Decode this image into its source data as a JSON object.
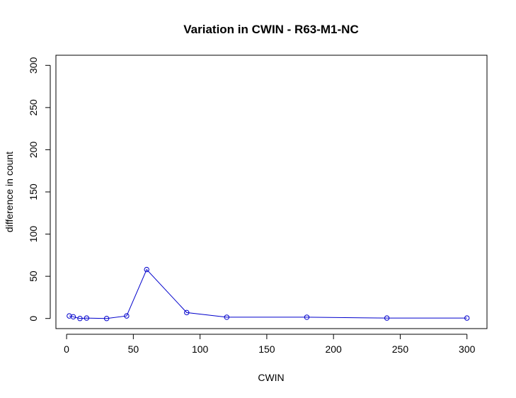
{
  "chart_data": {
    "type": "line",
    "title": "Variation in CWIN - R63-M1-NC",
    "xlabel": "CWIN",
    "ylabel": "difference in count",
    "xlim": [
      -8,
      315
    ],
    "ylim": [
      -12,
      312
    ],
    "xticks": [
      0,
      50,
      100,
      150,
      200,
      250,
      300
    ],
    "yticks": [
      0,
      50,
      100,
      150,
      200,
      250,
      300
    ],
    "grid": false,
    "line_color": "#0000cc",
    "point_color": "#0000cc",
    "series": [
      {
        "x": [
          2,
          5,
          10,
          15,
          30,
          45,
          60,
          90,
          120,
          180,
          240,
          300
        ],
        "y": [
          3,
          2,
          0,
          0.5,
          0,
          3,
          58,
          7,
          1.5,
          1.5,
          0.5,
          0.5
        ]
      }
    ]
  }
}
